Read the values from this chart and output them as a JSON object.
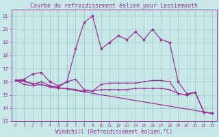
{
  "title": "Courbe du refroidissement éolien pour Lossiemouth",
  "xlabel": "Windchill (Refroidissement éolien,°C)",
  "xlim": [
    -0.5,
    23.5
  ],
  "ylim": [
    13,
    21.5
  ],
  "xticks": [
    0,
    1,
    2,
    3,
    4,
    5,
    6,
    7,
    8,
    9,
    10,
    11,
    12,
    13,
    14,
    15,
    16,
    17,
    18,
    19,
    20,
    21,
    22,
    23
  ],
  "yticks": [
    13,
    14,
    15,
    16,
    17,
    18,
    19,
    20,
    21
  ],
  "background_color": "#c8e8e8",
  "grid_color": "#9ec8c8",
  "line_color": "#993399",
  "series": [
    {
      "x": [
        0,
        1,
        2,
        3,
        4,
        5,
        6,
        7,
        8,
        9,
        10,
        11,
        12,
        13,
        14,
        15,
        16,
        17,
        18,
        19,
        20,
        21,
        22,
        23
      ],
      "y": [
        16.1,
        16.2,
        16.6,
        16.7,
        16.0,
        15.7,
        16.0,
        18.5,
        20.5,
        21.0,
        18.5,
        19.0,
        19.5,
        19.2,
        19.8,
        19.2,
        20.0,
        19.2,
        19.0,
        16.0,
        15.1,
        15.2,
        13.7,
        13.6
      ],
      "marker": "*",
      "markersize": 3,
      "lw": 0.9
    },
    {
      "x": [
        0,
        1,
        2,
        3,
        4,
        5,
        6,
        7,
        8,
        9,
        10,
        11,
        12,
        13,
        14,
        15,
        16,
        17,
        18,
        19,
        20,
        21,
        22,
        23
      ],
      "y": [
        16.1,
        15.8,
        15.7,
        15.8,
        15.6,
        15.5,
        15.5,
        15.4,
        15.3,
        15.3,
        15.4,
        15.4,
        15.4,
        15.4,
        15.5,
        15.5,
        15.5,
        15.5,
        15.4,
        15.1,
        15.0,
        15.2,
        13.7,
        13.6
      ],
      "marker": "+",
      "markersize": 3,
      "lw": 0.9
    },
    {
      "x": [
        0,
        1,
        2,
        3,
        4,
        5,
        6,
        7,
        8,
        9,
        10,
        11,
        12,
        13,
        14,
        15,
        16,
        17,
        18,
        19,
        20,
        21,
        22,
        23
      ],
      "y": [
        16.1,
        16.1,
        15.8,
        16.0,
        15.7,
        15.6,
        16.0,
        16.2,
        15.4,
        15.3,
        15.8,
        15.9,
        15.9,
        15.9,
        15.9,
        16.0,
        16.1,
        16.1,
        16.0,
        15.1,
        15.0,
        15.2,
        13.7,
        13.6
      ],
      "marker": "+",
      "markersize": 3,
      "lw": 0.9
    },
    {
      "x": [
        0,
        23
      ],
      "y": [
        16.1,
        13.6
      ],
      "marker": "None",
      "markersize": 0,
      "lw": 0.9
    }
  ],
  "title_fontsize": 6,
  "xlabel_fontsize": 5.5,
  "tick_fontsize": 5,
  "tick_x_fontsize": 4.2
}
